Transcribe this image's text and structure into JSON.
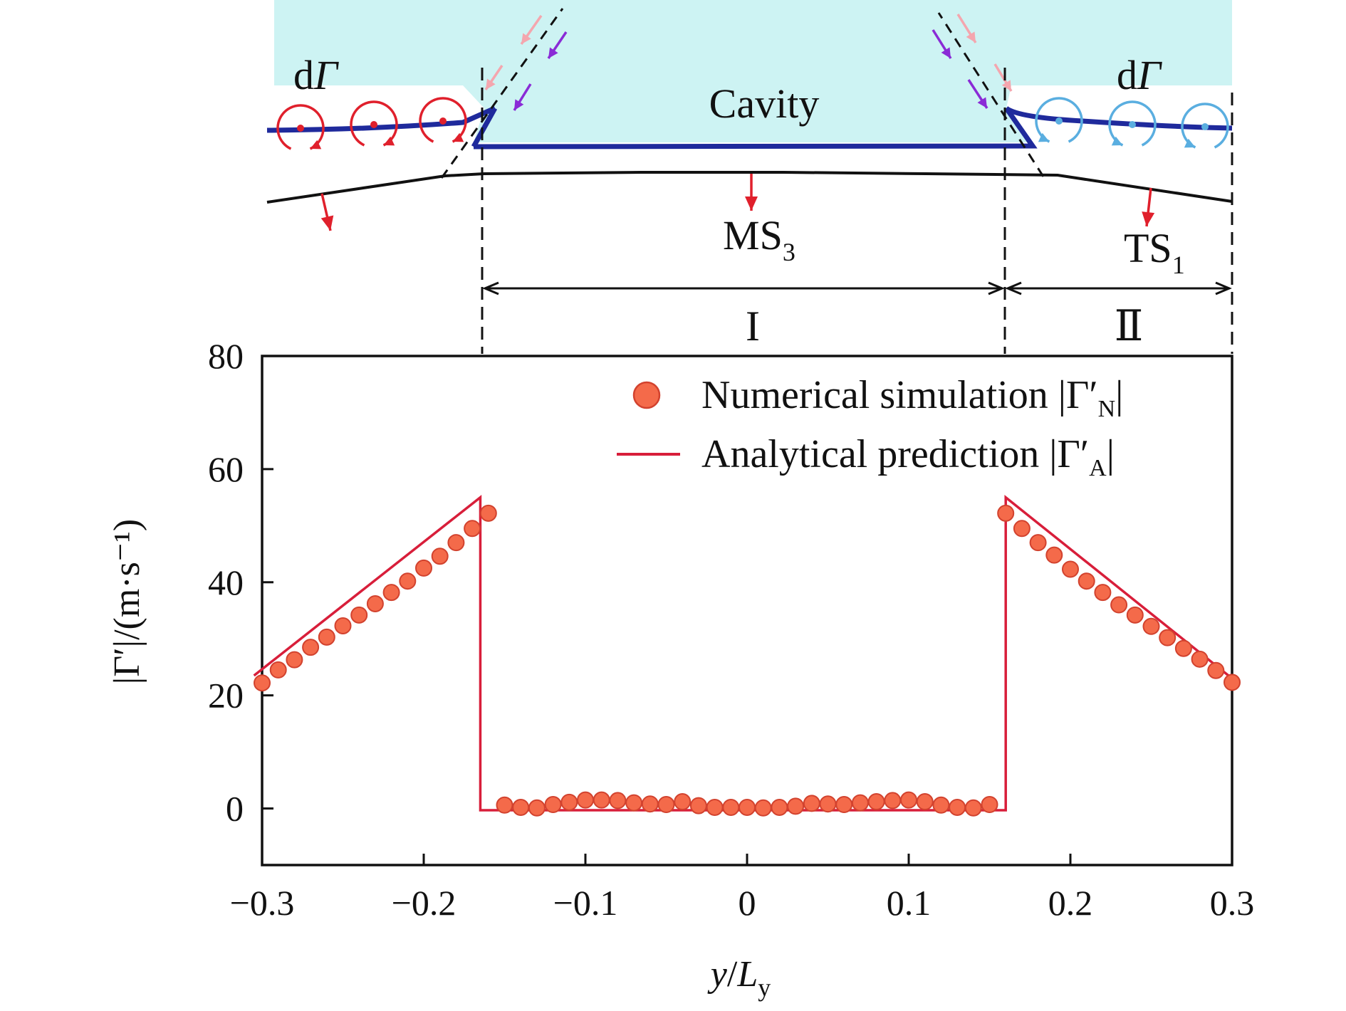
{
  "colors": {
    "cavity_fill": "#cdf3f3",
    "interface_blue": "#1f2a9c",
    "vortex_red": "#e0202c",
    "vortex_blue": "#5aaee0",
    "numerical_marker": "#f46a4a",
    "numerical_edge": "#d2422e",
    "analytical_line": "#d81e3a",
    "arrow_pink": "#f4a6ae",
    "arrow_purple": "#8a2bd6",
    "black": "#111111"
  },
  "diagram": {
    "cavity_label": "Cavity",
    "left_circulation_label": "d",
    "left_circulation_symbol": "Γ",
    "right_circulation_label": "d",
    "right_circulation_symbol": "Γ",
    "ms_label": "MS",
    "ms_subscript": "3",
    "ts_label": "TS",
    "ts_subscript": "1",
    "region_1": "I",
    "region_2": "Ⅱ",
    "icons": [
      "vortex-cw-icon",
      "vortex-ccw-icon",
      "arrow-down-icon",
      "dashed-arrow-icon"
    ]
  },
  "chart_data": {
    "type": "scatter",
    "xlabel_main": "y",
    "xlabel_slash": "/",
    "xlabel_L": "L",
    "xlabel_sub": "y",
    "ylabel": "|Γ′|/(m·s⁻¹)",
    "xlim": [
      -0.3,
      0.3
    ],
    "ylim": [
      -10,
      80
    ],
    "xticks": [
      -0.3,
      -0.2,
      -0.1,
      0,
      0.1,
      0.2,
      0.3
    ],
    "xtick_labels": [
      "−0.3",
      "−0.2",
      "−0.1",
      "0",
      "0.1",
      "0.2",
      "0.3"
    ],
    "yticks": [
      0,
      20,
      40,
      60,
      80
    ],
    "ytick_labels": [
      "0",
      "20",
      "40",
      "60",
      "80"
    ],
    "grid": false,
    "legend_position": "top-right",
    "legend": [
      {
        "marker": "circle",
        "text": "Numerical simulation |Γ′",
        "sub": "N",
        "close": "|"
      },
      {
        "marker": "line",
        "text": "Analytical prediction |Γ′",
        "sub": "A",
        "close": "|"
      }
    ],
    "series": [
      {
        "name": "Numerical simulation |Γ′N|",
        "kind": "markers",
        "x": [
          -0.3,
          -0.29,
          -0.28,
          -0.27,
          -0.26,
          -0.25,
          -0.24,
          -0.23,
          -0.22,
          -0.21,
          -0.2,
          -0.19,
          -0.18,
          -0.17,
          -0.16,
          -0.15,
          -0.14,
          -0.13,
          -0.12,
          -0.11,
          -0.1,
          -0.09,
          -0.08,
          -0.07,
          -0.06,
          -0.05,
          -0.04,
          -0.03,
          -0.02,
          -0.01,
          0,
          0.01,
          0.02,
          0.03,
          0.04,
          0.05,
          0.06,
          0.07,
          0.08,
          0.09,
          0.1,
          0.11,
          0.12,
          0.13,
          0.14,
          0.15,
          0.16,
          0.17,
          0.18,
          0.19,
          0.2,
          0.21,
          0.22,
          0.23,
          0.24,
          0.25,
          0.26,
          0.27,
          0.28,
          0.29,
          0.3
        ],
        "y": [
          22.2,
          24.5,
          26.3,
          28.5,
          30.3,
          32.3,
          34.2,
          36.2,
          38.2,
          40.2,
          42.5,
          44.6,
          47.0,
          49.5,
          52.2,
          0.6,
          0.2,
          0.1,
          0.7,
          1.1,
          1.5,
          1.5,
          1.4,
          1.0,
          0.8,
          0.7,
          1.2,
          0.5,
          0.2,
          0.2,
          0.2,
          0.1,
          0.2,
          0.4,
          0.9,
          0.8,
          0.7,
          1.0,
          1.2,
          1.4,
          1.5,
          1.2,
          0.6,
          0.2,
          0.1,
          0.7,
          52.2,
          49.5,
          47.0,
          44.8,
          42.3,
          40.2,
          38.2,
          36.0,
          34.2,
          32.2,
          30.2,
          28.3,
          26.4,
          24.4,
          22.3
        ]
      },
      {
        "name": "Analytical prediction |Γ′A|",
        "kind": "line",
        "x": [
          -0.305,
          -0.165,
          -0.165,
          0.16,
          0.16,
          0.3
        ],
        "y": [
          23.5,
          55.0,
          -0.3,
          -0.3,
          55.0,
          23.0
        ]
      }
    ]
  }
}
